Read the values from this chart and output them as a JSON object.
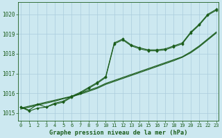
{
  "title": "Graphe pression niveau de la mer (hPa)",
  "bg_color": "#cce8f0",
  "grid_color": "#aaccdd",
  "line_color": "#1a5c1a",
  "xlim": [
    -0.3,
    23.3
  ],
  "ylim": [
    1014.6,
    1020.6
  ],
  "xticks": [
    0,
    1,
    2,
    3,
    4,
    5,
    6,
    7,
    8,
    9,
    10,
    11,
    12,
    13,
    14,
    15,
    16,
    17,
    18,
    19,
    20,
    21,
    22,
    23
  ],
  "yticks": [
    1015,
    1016,
    1017,
    1018,
    1019,
    1020
  ],
  "series_jagged": [
    1015.3,
    1015.15,
    1015.45,
    1015.3,
    1015.5,
    1015.6,
    1015.85,
    1016.05,
    1016.3,
    1016.55,
    1016.85,
    1018.55,
    1018.75,
    1018.45,
    1018.3,
    1018.2,
    1018.2,
    1018.25,
    1018.4,
    1018.55,
    1019.1,
    1019.5,
    1020.0,
    1020.25
  ],
  "series_jagged2": [
    1015.3,
    1015.1,
    1015.25,
    1015.3,
    1015.45,
    1015.55,
    1015.8,
    1016.0,
    1016.25,
    1016.5,
    1016.8,
    1018.5,
    1018.7,
    1018.4,
    1018.25,
    1018.15,
    1018.15,
    1018.2,
    1018.35,
    1018.5,
    1019.05,
    1019.45,
    1019.95,
    1020.2
  ],
  "series_linear1": [
    1015.25,
    1015.35,
    1015.45,
    1015.55,
    1015.65,
    1015.75,
    1015.85,
    1016.0,
    1016.15,
    1016.3,
    1016.5,
    1016.65,
    1016.8,
    1016.95,
    1017.1,
    1017.25,
    1017.4,
    1017.55,
    1017.7,
    1017.85,
    1018.1,
    1018.4,
    1018.75,
    1019.1
  ],
  "series_linear2": [
    1015.2,
    1015.3,
    1015.4,
    1015.5,
    1015.6,
    1015.72,
    1015.83,
    1015.95,
    1016.1,
    1016.25,
    1016.45,
    1016.6,
    1016.75,
    1016.9,
    1017.05,
    1017.2,
    1017.35,
    1017.5,
    1017.65,
    1017.82,
    1018.05,
    1018.35,
    1018.7,
    1019.05
  ]
}
